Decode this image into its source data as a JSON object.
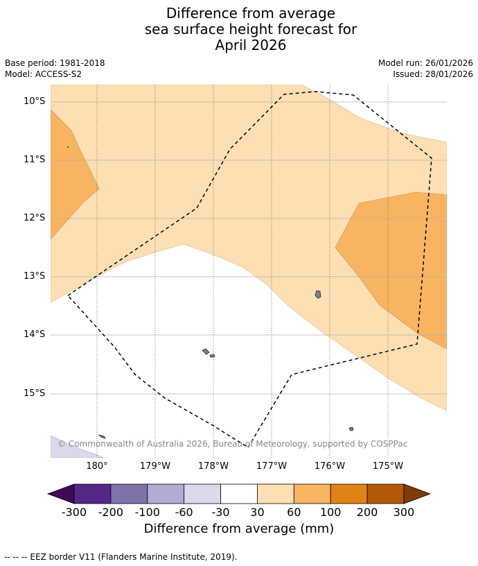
{
  "title": {
    "line1": "Difference from average",
    "line2": "sea surface height forecast for",
    "line3": "April 2026"
  },
  "meta": {
    "base_period": "Base period: 1981-2018",
    "model": "Model: ACCESS-S2",
    "model_run": "Model run: 26/01/2026",
    "issued": "Issued: 28/01/2026"
  },
  "map": {
    "lat_labels": [
      "10°S",
      "11°S",
      "12°S",
      "13°S",
      "14°S",
      "15°S"
    ],
    "lon_labels": [
      "180°",
      "179°W",
      "178°W",
      "177°W",
      "176°W",
      "175°W"
    ],
    "credit": "© Commonwealth of Australia 2026, Bureau of Meteorology, supported by COSPPac",
    "colors": {
      "band_30_60": "#fddfb3",
      "band_60_100": "#f8b461",
      "band_neg60_neg30": "#d8daeb",
      "land": "#808080",
      "eez": "#000000"
    }
  },
  "colorbar": {
    "ticks": [
      "-300",
      "-200",
      "-100",
      "-60",
      "-30",
      "30",
      "60",
      "100",
      "200",
      "300"
    ],
    "colors": [
      "#3f0a55",
      "#542788",
      "#8073ac",
      "#b2abd2",
      "#d8daeb",
      "#ffffff",
      "#fddfb3",
      "#f8b461",
      "#e08214",
      "#b35806",
      "#7f3b08"
    ],
    "label": "Difference from average (mm)"
  },
  "footer": "--  --  -- EEZ border V11 (Flanders Marine Institute, 2019)."
}
